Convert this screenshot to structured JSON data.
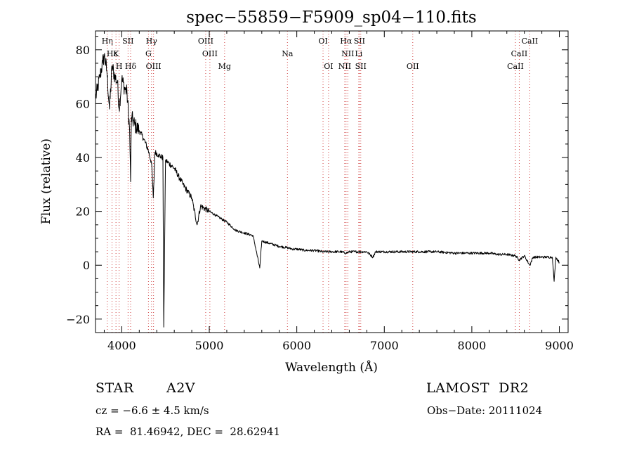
{
  "chart_data": {
    "type": "line",
    "title": "spec−55859−F5909_sp04−110.fits",
    "xlabel": "Wavelength (Å)",
    "ylabel": "Flux (relative)",
    "xlim": [
      3700,
      9100
    ],
    "ylim": [
      -25,
      87
    ],
    "x_ticks": [
      4000,
      5000,
      6000,
      7000,
      8000,
      9000
    ],
    "x_tick_labels": [
      "4000",
      "5000",
      "6000",
      "7000",
      "8000",
      "9000"
    ],
    "y_ticks": [
      -20,
      0,
      20,
      40,
      60,
      80
    ],
    "y_tick_labels": [
      "−20",
      "0",
      "20",
      "40",
      "60",
      "80"
    ],
    "grid": false,
    "series": [
      {
        "color": "#000000",
        "noise": 0.9,
        "x": [
          3700,
          3720,
          3750,
          3780,
          3800,
          3830,
          3860,
          3890,
          3920,
          3950,
          3970,
          4000,
          4030,
          4060,
          4090,
          4101,
          4110,
          4150,
          4200,
          4250,
          4300,
          4340,
          4360,
          4380,
          4420,
          4460,
          4470,
          4480,
          4500,
          4600,
          4700,
          4800,
          4861,
          4900,
          5000,
          5100,
          5200,
          5300,
          5400,
          5500,
          5577,
          5600,
          5700,
          5800,
          5893,
          5950,
          6000,
          6100,
          6200,
          6300,
          6400,
          6500,
          6563,
          6600,
          6700,
          6800,
          6870,
          6900,
          7000,
          7200,
          7400,
          7600,
          7800,
          8000,
          8200,
          8300,
          8400,
          8500,
          8542,
          8600,
          8662,
          8700,
          8800,
          8900,
          8920,
          8940,
          8960,
          9000
        ],
        "y": [
          62,
          65,
          70,
          75,
          78,
          72,
          58,
          74,
          70,
          68,
          58,
          69,
          66,
          64,
          50,
          31,
          55,
          52,
          50,
          47,
          43,
          38,
          25,
          42,
          41,
          40,
          40,
          -23,
          39,
          36,
          30,
          25,
          15,
          22,
          20,
          18,
          16,
          13,
          12,
          11,
          -1,
          9,
          8,
          7,
          6.5,
          6,
          6,
          5.5,
          5.5,
          5,
          5,
          5,
          4.5,
          5,
          5,
          5,
          3,
          5,
          5,
          5,
          5,
          5,
          4.5,
          4.5,
          4.5,
          4,
          4,
          3.5,
          2,
          3.5,
          0,
          3,
          3,
          3,
          3,
          -6,
          3,
          1
        ]
      }
    ],
    "lines": [
      {
        "label": "Hη",
        "x": 3835,
        "row": 0
      },
      {
        "label": "Hε",
        "x": 3889,
        "row": 1
      },
      {
        "label": "K",
        "x": 3934,
        "row": 1
      },
      {
        "label": "H",
        "x": 3970,
        "row": 2
      },
      {
        "label": "SII",
        "x": 4072,
        "row": 0
      },
      {
        "label": "Hδ",
        "x": 4101,
        "row": 2
      },
      {
        "label": "Hγ",
        "x": 4340,
        "row": 0
      },
      {
        "label": "G",
        "x": 4305,
        "row": 1
      },
      {
        "label": "OIII",
        "x": 4363,
        "row": 2
      },
      {
        "label": "OIII",
        "x": 4959,
        "row": 0
      },
      {
        "label": "OIII",
        "x": 5007,
        "row": 1
      },
      {
        "label": "Mg",
        "x": 5175,
        "row": 2
      },
      {
        "label": "Na",
        "x": 5893,
        "row": 1
      },
      {
        "label": "OI",
        "x": 6300,
        "row": 0
      },
      {
        "label": "OI",
        "x": 6363,
        "row": 2
      },
      {
        "label": "Hα",
        "x": 6563,
        "row": 0
      },
      {
        "label": "NII",
        "x": 6583,
        "row": 1
      },
      {
        "label": "NII",
        "x": 6548,
        "row": 2
      },
      {
        "label": "SII",
        "x": 6716,
        "row": 0
      },
      {
        "label": "Li",
        "x": 6708,
        "row": 1
      },
      {
        "label": "SII",
        "x": 6731,
        "row": 2
      },
      {
        "label": "OII",
        "x": 7325,
        "row": 2
      },
      {
        "label": "CaII",
        "x": 8662,
        "row": 0
      },
      {
        "label": "CaII",
        "x": 8542,
        "row": 1
      },
      {
        "label": "CaII",
        "x": 8498,
        "row": 2
      }
    ]
  },
  "info": {
    "class": "STAR",
    "subclass": "A2V",
    "survey": "LAMOST  DR2",
    "cz": "cz = −6.6 ± 4.5 km/s",
    "obs_date": "Obs−Date: 20111024",
    "coords": "RA =  81.46942, DEC =  28.62941"
  }
}
